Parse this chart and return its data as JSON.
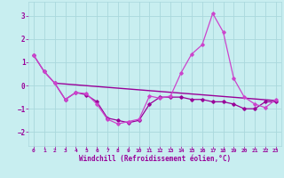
{
  "xlabel": "Windchill (Refroidissement éolien,°C)",
  "ylabel": "",
  "background_color": "#c8eef0",
  "grid_color": "#aad8dc",
  "line_color": "#990099",
  "line_color2": "#cc44cc",
  "xlim": [
    -0.5,
    23.5
  ],
  "ylim": [
    -2.6,
    3.6
  ],
  "yticks": [
    -2,
    -1,
    0,
    1,
    2,
    3
  ],
  "xticks": [
    0,
    1,
    2,
    3,
    4,
    5,
    6,
    7,
    8,
    9,
    10,
    11,
    12,
    13,
    14,
    15,
    16,
    17,
    18,
    19,
    20,
    21,
    22,
    23
  ],
  "series1": [
    1.3,
    0.6,
    0.1,
    -0.6,
    -0.3,
    -0.4,
    -0.7,
    -1.4,
    -1.5,
    -1.6,
    -1.5,
    -0.8,
    -0.5,
    -0.5,
    -0.5,
    -0.6,
    -0.6,
    -0.7,
    -0.7,
    -0.8,
    -1.0,
    -1.0,
    -0.7,
    -0.7
  ],
  "series2": [
    1.3,
    0.6,
    0.1,
    -0.6,
    -0.3,
    -0.35,
    -0.8,
    -1.45,
    -1.65,
    -1.55,
    -1.45,
    -0.45,
    -0.55,
    -0.45,
    0.55,
    1.35,
    1.75,
    3.1,
    2.3,
    0.3,
    -0.5,
    -0.8,
    -0.95,
    -0.6
  ],
  "trend_y_start": 0.1,
  "trend_y_end": -0.65,
  "trend_x_start": 2,
  "trend_x_end": 23
}
